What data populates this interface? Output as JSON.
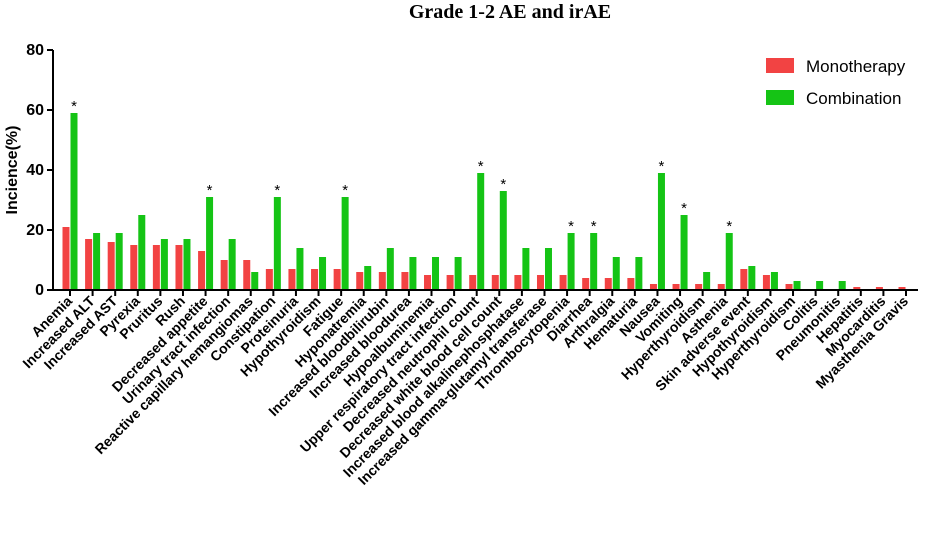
{
  "chart_data": {
    "type": "bar",
    "title": "Grade 1-2 AE and irAE",
    "ylabel": "Incience(%)",
    "xlabel": "",
    "ylim": [
      0,
      80
    ],
    "yticks": [
      0,
      20,
      40,
      60,
      80
    ],
    "grid": false,
    "legend_position": "top-right",
    "categories": [
      "Anemia",
      "Increased ALT",
      "Increased AST",
      "Pyrexia",
      "Pruritus",
      "Rush",
      "Decreased appetite",
      "Urinary tract infection",
      "Reactive capillary hemangiomas",
      "Constipation",
      "Proteinuria",
      "Hypothyroidism",
      "Fatigue",
      "Hyponatremia",
      "Increased bloodbilirubin",
      "Increased bloodurea",
      "Hypoalbuminemia",
      "Upper respiratory tract infection",
      "Decreased neutrophil count",
      "Decreased white blood cell count",
      "Increased blood alkalinephosphatase",
      "Increased gamma-glutamyl transferase",
      "Thrombocytopenia",
      "Diarrhea",
      "Arthralgia",
      "Hematuria",
      "Nausea",
      "Vomiting",
      "Hyperthyroidism",
      "Asthenia",
      "Skin adverse event",
      "Hypothyroidism",
      "Hyperthyroidism",
      "Colitis",
      "Pneumonitis",
      "Hepatitis",
      "Myocarditis",
      "Myasthenia Gravis"
    ],
    "series": [
      {
        "name": "Monotherapy",
        "color": "#f24343",
        "values": [
          21,
          17,
          16,
          15,
          15,
          15,
          13,
          10,
          10,
          7,
          7,
          7,
          7,
          6,
          6,
          6,
          5,
          5,
          5,
          5,
          5,
          5,
          5,
          4,
          4,
          4,
          2,
          2,
          2,
          2,
          7,
          5,
          2,
          0,
          0,
          1,
          1,
          1
        ]
      },
      {
        "name": "Combination",
        "color": "#15c415",
        "values": [
          59,
          19,
          19,
          25,
          17,
          17,
          31,
          17,
          6,
          31,
          14,
          11,
          31,
          8,
          14,
          11,
          11,
          11,
          39,
          33,
          14,
          14,
          19,
          19,
          11,
          11,
          39,
          25,
          6,
          19,
          8,
          6,
          3,
          3,
          3,
          0,
          0,
          0
        ]
      }
    ],
    "significance_marks": [
      {
        "category_index": 0,
        "text": "*"
      },
      {
        "category_index": 6,
        "text": "*"
      },
      {
        "category_index": 9,
        "text": "*"
      },
      {
        "category_index": 12,
        "text": "*"
      },
      {
        "category_index": 18,
        "text": "*"
      },
      {
        "category_index": 19,
        "text": "*"
      },
      {
        "category_index": 22,
        "text": "*"
      },
      {
        "category_index": 23,
        "text": "*"
      },
      {
        "category_index": 26,
        "text": "*"
      },
      {
        "category_index": 27,
        "text": "*"
      },
      {
        "category_index": 29,
        "text": "*"
      }
    ]
  }
}
